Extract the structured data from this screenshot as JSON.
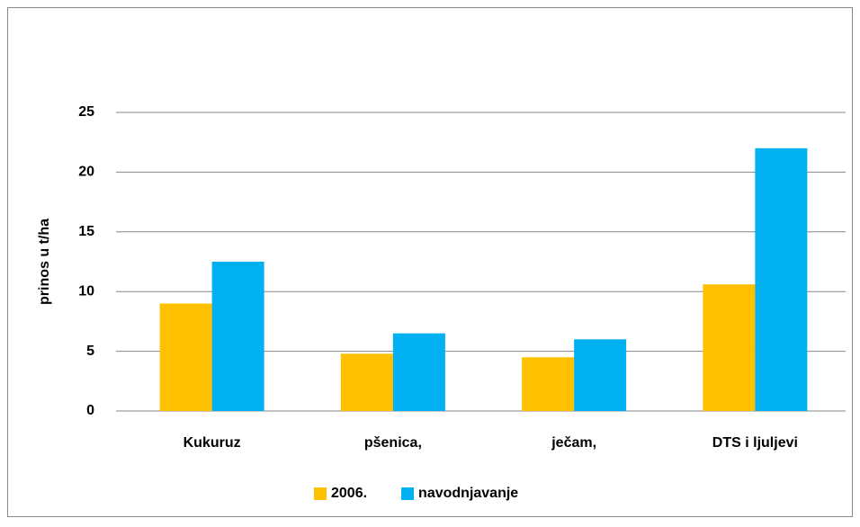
{
  "chart_data": {
    "type": "bar",
    "y_label": "prinos u t/ha",
    "categories": [
      "Kukuruz",
      "pšenica,",
      "ječam,",
      "DTS i ljuljevi"
    ],
    "series": [
      {
        "name": "2006.",
        "color": "#ffc000",
        "values": [
          9,
          4.8,
          4.5,
          10.6
        ]
      },
      {
        "name": "navodnjavanje",
        "color": "#00b0f0",
        "values": [
          12.5,
          6.5,
          6,
          22
        ]
      }
    ],
    "ylim": [
      0,
      25
    ],
    "yticks": [
      0,
      5,
      10,
      15,
      20,
      25
    ],
    "grid": true,
    "legend": "bottom"
  }
}
